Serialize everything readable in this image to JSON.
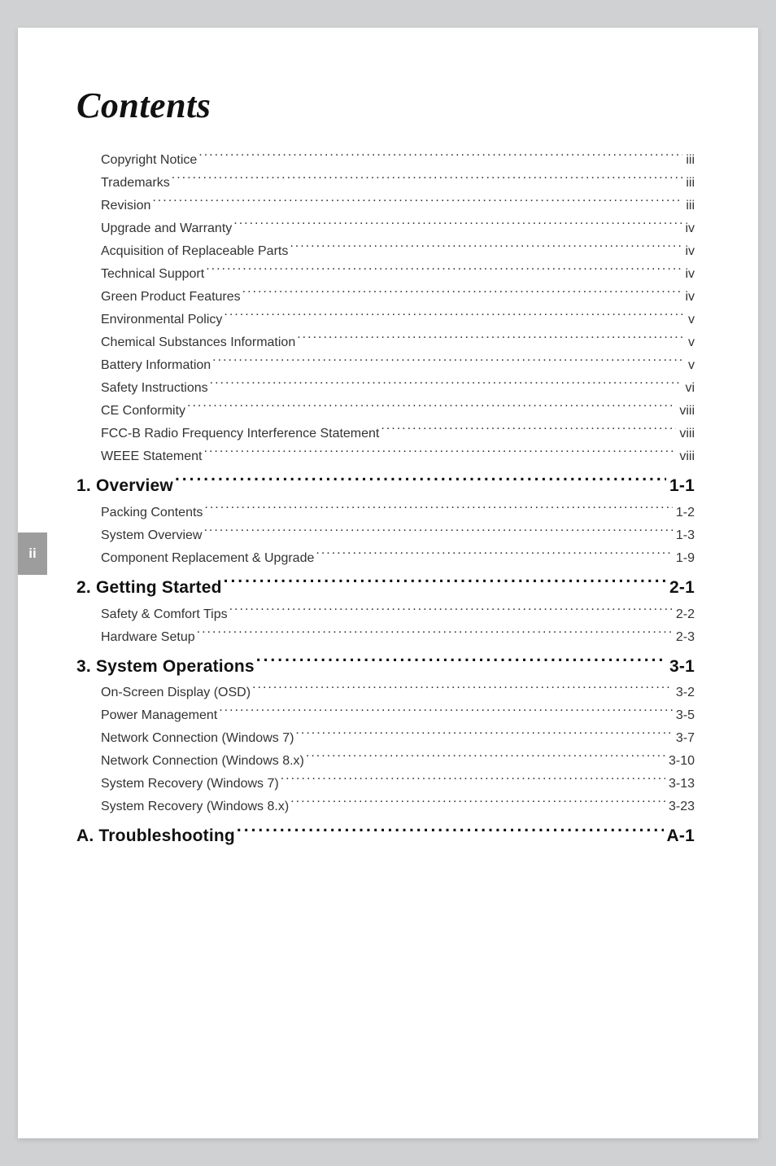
{
  "page_number_tab": "ii",
  "title": "Contents",
  "typography": {
    "title_font": "Georgia serif italic",
    "title_fontsize": 44,
    "body_font": "Arial",
    "body_fontsize": 16,
    "section_fontsize": 21,
    "line_height": 1.75
  },
  "colors": {
    "page_bg": "#d0d1d2",
    "sheet_bg": "#ffffff",
    "tab_bg": "#9d9d9d",
    "tab_text": "#ffffff",
    "text": "#333333",
    "heading_text": "#111111"
  },
  "toc": {
    "front_matter": [
      {
        "label": "Copyright Notice",
        "page": "iii"
      },
      {
        "label": "Trademarks",
        "page": "iii"
      },
      {
        "label": "Revision",
        "page": "iii"
      },
      {
        "label": "Upgrade and Warranty",
        "page": "iv"
      },
      {
        "label": "Acquisition of Replaceable Parts",
        "page": "iv"
      },
      {
        "label": "Technical Support",
        "page": "iv"
      },
      {
        "label": "Green Product Features",
        "page": "iv"
      },
      {
        "label": "Environmental Policy",
        "page": "v"
      },
      {
        "label": "Chemical Substances Information",
        "page": "v"
      },
      {
        "label": "Battery Information",
        "page": "v"
      },
      {
        "label": "Safety Instructions",
        "page": "vi"
      },
      {
        "label": "CE Conformity",
        "page": "viii"
      },
      {
        "label": "FCC-B Radio Frequency Interference Statement",
        "page": "viii"
      },
      {
        "label": "WEEE Statement",
        "page": "viii"
      }
    ],
    "sections": [
      {
        "heading": "1. Overview",
        "page": "1-1",
        "items": [
          {
            "label": "Packing Contents",
            "page": "1-2"
          },
          {
            "label": "System Overview",
            "page": "1-3"
          },
          {
            "label": "Component Replacement & Upgrade",
            "page": "1-9"
          }
        ]
      },
      {
        "heading": "2. Getting Started",
        "page": "2-1",
        "items": [
          {
            "label": "Safety & Comfort Tips",
            "page": "2-2"
          },
          {
            "label": "Hardware Setup",
            "page": "2-3"
          }
        ]
      },
      {
        "heading": "3. System Operations",
        "page": "3-1",
        "items": [
          {
            "label": "On-Screen Display (OSD)",
            "page": "3-2"
          },
          {
            "label": "Power Management",
            "page": "3-5"
          },
          {
            "label": "Network Connection (Windows 7)",
            "page": "3-7"
          },
          {
            "label": "Network Connection (Windows 8.x)",
            "page": "3-10"
          },
          {
            "label": "System Recovery (Windows 7)",
            "page": "3-13"
          },
          {
            "label": "System Recovery (Windows 8.x)",
            "page": "3-23"
          }
        ]
      },
      {
        "heading": "A. Troubleshooting",
        "page": "A-1",
        "items": []
      }
    ]
  }
}
